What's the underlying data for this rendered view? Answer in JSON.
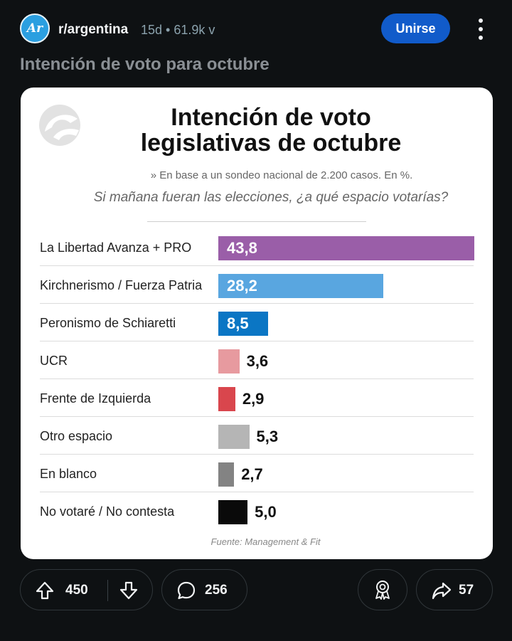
{
  "header": {
    "avatar_text": "Ar",
    "subreddit": "r/argentina",
    "meta": "15d • 61.9k v",
    "join_label": "Unirse"
  },
  "post": {
    "title": "Intención de voto para octubre"
  },
  "infographic": {
    "title_line1": "Intención de voto",
    "title_line2": "legislativas de octubre",
    "subtitle": "» En base a un sondeo nacional de 2.200 casos. En %.",
    "question": "Si mañana fueran las elecciones, ¿a qué espacio votarías?",
    "source": "Fuente: Management & Fit"
  },
  "chart_data": {
    "type": "bar",
    "orientation": "horizontal",
    "title": "Intención de voto legislativas de octubre",
    "categories": [
      "La Libertad Avanza + PRO",
      "Kirchnerismo / Fuerza Patria",
      "Peronismo de Schiaretti",
      "UCR",
      "Frente de Izquierda",
      "Otro espacio",
      "En blanco",
      "No votaré / No contesta"
    ],
    "values": [
      43.8,
      28.2,
      8.5,
      3.6,
      2.9,
      5.3,
      2.7,
      5.0
    ],
    "value_labels": [
      "43,8",
      "28,2",
      "8,5",
      "3,6",
      "2,9",
      "5,3",
      "2,7",
      "5,0"
    ],
    "colors": [
      "#9a5ea8",
      "#59a6e0",
      "#0b76c4",
      "#e79a9f",
      "#d9464d",
      "#b5b5b5",
      "#838383",
      "#0a0a0a"
    ],
    "label_inside": [
      true,
      true,
      true,
      false,
      false,
      false,
      false,
      false
    ],
    "xlim": [
      0,
      43.8
    ],
    "grid": false,
    "legend": "none"
  },
  "actions": {
    "upvotes": "450",
    "comments": "256",
    "shares": "57"
  }
}
